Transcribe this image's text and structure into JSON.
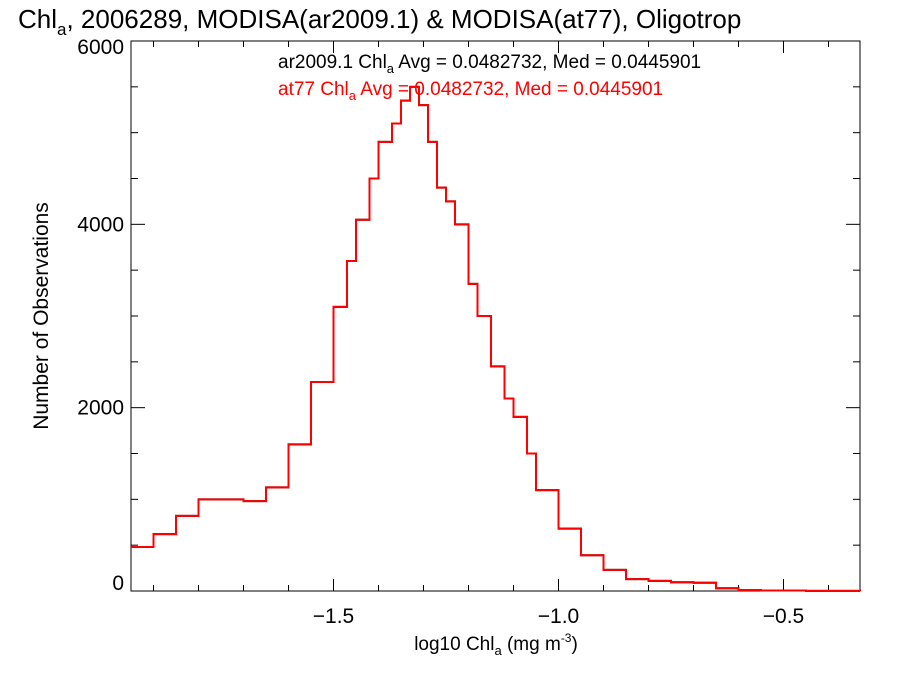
{
  "chart_data": {
    "type": "line",
    "title": {
      "prefix": "Chl",
      "sub": "a",
      "rest": ", 2006289, MODISA(ar2009.1) & MODISA(at77), Oligotrop"
    },
    "xlabel": {
      "prefix": "log10 Chl",
      "sub": "a",
      "mid": " (mg m",
      "sup": "-3",
      "suffix": ")"
    },
    "ylabel": "Number of Observations",
    "xlim": [
      -1.95,
      -0.33
    ],
    "ylim": [
      0,
      6000
    ],
    "xticks": [
      -1.5,
      -1.0,
      -0.5
    ],
    "xtick_labels": [
      "−1.5",
      "−1.0",
      "−0.5"
    ],
    "yticks": [
      0,
      2000,
      4000,
      6000
    ],
    "ytick_labels": [
      "0",
      "2000",
      "4000",
      "6000"
    ],
    "grid": false,
    "annotations": [
      {
        "color": "#000000",
        "prefix": "ar2009.1 Chl",
        "sub": "a",
        "suffix": " Avg = 0.0482732, Med = 0.0445901"
      },
      {
        "color": "#ff0000",
        "prefix": "at77 Chl",
        "sub": "a",
        "suffix": " Avg = 0.0482732, Med = 0.0445901"
      }
    ],
    "series": [
      {
        "color": "#000000",
        "x": [
          -1.95,
          -1.9,
          -1.85,
          -1.8,
          -1.75,
          -1.7,
          -1.65,
          -1.6,
          -1.55,
          -1.5,
          -1.47,
          -1.45,
          -1.42,
          -1.4,
          -1.37,
          -1.35,
          -1.33,
          -1.31,
          -1.29,
          -1.27,
          -1.25,
          -1.23,
          -1.2,
          -1.18,
          -1.15,
          -1.12,
          -1.1,
          -1.07,
          -1.05,
          -1.0,
          -0.95,
          -0.9,
          -0.85,
          -0.8,
          -0.75,
          -0.7,
          -0.65,
          -0.6,
          -0.55,
          -0.5,
          -0.45,
          -0.4,
          -0.33
        ],
        "y": [
          480,
          620,
          820,
          1000,
          1000,
          980,
          1130,
          1600,
          2280,
          3100,
          3600,
          4050,
          4500,
          4900,
          5100,
          5350,
          5500,
          5300,
          4900,
          4400,
          4250,
          4000,
          3350,
          3000,
          2450,
          2100,
          1900,
          1500,
          1100,
          680,
          390,
          230,
          130,
          110,
          95,
          90,
          30,
          10,
          5,
          5,
          2,
          1,
          0
        ]
      },
      {
        "color": "#ff0000",
        "x": [
          -1.95,
          -1.9,
          -1.85,
          -1.8,
          -1.75,
          -1.7,
          -1.65,
          -1.6,
          -1.55,
          -1.5,
          -1.47,
          -1.45,
          -1.42,
          -1.4,
          -1.37,
          -1.35,
          -1.33,
          -1.31,
          -1.29,
          -1.27,
          -1.25,
          -1.23,
          -1.2,
          -1.18,
          -1.15,
          -1.12,
          -1.1,
          -1.07,
          -1.05,
          -1.0,
          -0.95,
          -0.9,
          -0.85,
          -0.8,
          -0.75,
          -0.7,
          -0.65,
          -0.6,
          -0.55,
          -0.5,
          -0.45,
          -0.4,
          -0.33
        ],
        "y": [
          480,
          620,
          820,
          1000,
          1000,
          980,
          1130,
          1600,
          2280,
          3100,
          3600,
          4050,
          4500,
          4900,
          5100,
          5350,
          5500,
          5300,
          4900,
          4400,
          4250,
          4000,
          3350,
          3000,
          2450,
          2100,
          1900,
          1500,
          1100,
          680,
          390,
          230,
          130,
          110,
          95,
          90,
          30,
          10,
          5,
          5,
          2,
          1,
          0
        ]
      }
    ]
  }
}
